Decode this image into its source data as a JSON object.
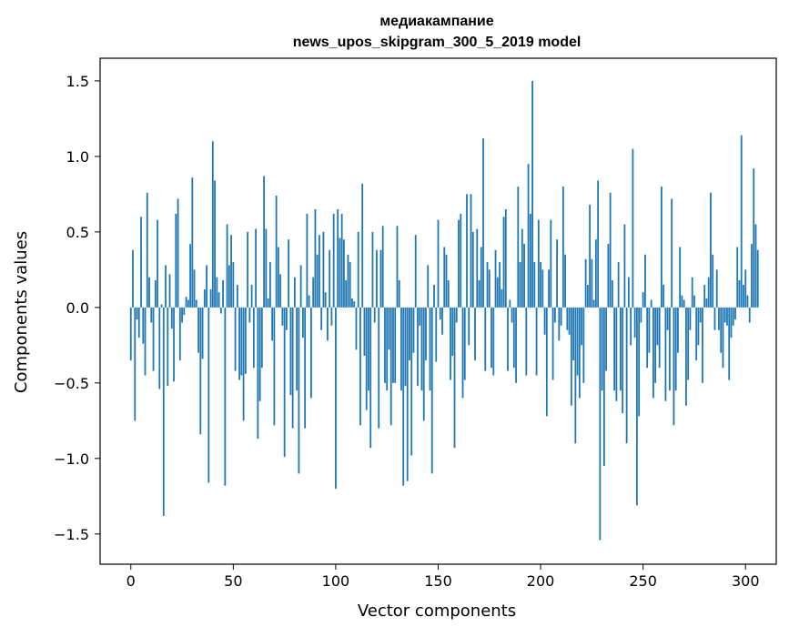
{
  "chart_data": {
    "type": "bar",
    "title_line1": "медиакампание",
    "title_line2": "news_upos_skipgram_300_5_2019 model",
    "xlabel": "Vector components",
    "ylabel": "Components values",
    "xlim": [
      -15,
      315
    ],
    "ylim": [
      -1.7,
      1.65
    ],
    "xticks": [
      0,
      50,
      100,
      150,
      200,
      250,
      300
    ],
    "yticks": [
      -1.5,
      -1.0,
      -0.5,
      0.0,
      0.5,
      1.0,
      1.5
    ],
    "xtick_labels": [
      "0",
      "50",
      "100",
      "150",
      "200",
      "250",
      "300"
    ],
    "ytick_labels": [
      "−1.5",
      "−1.0",
      "−0.5",
      "0.0",
      "0.5",
      "1.0",
      "1.5"
    ],
    "bar_color": "#1f77b4",
    "values": [
      -0.35,
      0.38,
      -0.75,
      -0.08,
      -0.2,
      0.6,
      -0.24,
      -0.45,
      0.76,
      0.2,
      -0.1,
      -0.42,
      0.18,
      0.58,
      -0.54,
      0.02,
      -1.38,
      0.28,
      -0.52,
      0.22,
      -0.14,
      -0.49,
      0.62,
      0.72,
      -0.35,
      -0.1,
      -0.05,
      0.07,
      0.05,
      0.42,
      0.86,
      0.25,
      0.05,
      -0.3,
      -0.84,
      -0.34,
      0.12,
      0.28,
      -1.16,
      0.12,
      1.1,
      0.84,
      0.2,
      0.1,
      -0.04,
      0.18,
      -1.18,
      0.55,
      0.28,
      0.48,
      0.3,
      -0.42,
      0.15,
      -0.48,
      -0.45,
      -0.75,
      -0.44,
      0.5,
      -0.1,
      0.15,
      -0.4,
      0.52,
      -0.87,
      -0.62,
      -0.4,
      0.87,
      0.52,
      0.06,
      0.3,
      -0.22,
      -0.78,
      0.74,
      0.4,
      0.22,
      -0.12,
      -0.99,
      -0.15,
      0.45,
      -0.58,
      -0.8,
      0.2,
      -0.55,
      -1.1,
      0.28,
      -0.2,
      -0.8,
      0.62,
      0.08,
      -0.6,
      0.2,
      0.65,
      0.35,
      0.48,
      -0.15,
      0.5,
      0.1,
      -0.22,
      0.38,
      -0.12,
      0.62,
      -1.2,
      0.65,
      0.46,
      0.62,
      0.45,
      0.18,
      0.35,
      0.3,
      0.06,
      0.04,
      -0.28,
      0.5,
      -0.78,
      0.82,
      -0.32,
      -0.68,
      -0.55,
      -0.93,
      0.5,
      -0.1,
      0.38,
      -0.8,
      0.38,
      0.54,
      -0.5,
      -0.55,
      -0.28,
      -0.78,
      -0.5,
      -0.5,
      0.54,
      0.18,
      -0.55,
      -1.18,
      -0.52,
      -1.15,
      -0.35,
      -0.98,
      -0.3,
      0.48,
      -0.52,
      -0.12,
      -0.55,
      -0.75,
      -0.35,
      0.28,
      -0.55,
      -1.1,
      0.15,
      -0.36,
      0.58,
      -0.08,
      -0.18,
      0.4,
      0.35,
      0.18,
      -0.48,
      -0.32,
      -0.93,
      -0.1,
      0.58,
      0.62,
      -0.6,
      -0.48,
      0.75,
      -0.25,
      0.75,
      0.5,
      -0.35,
      0.52,
      0.18,
      0.4,
      1.12,
      -0.42,
      0.3,
      0.25,
      -0.4,
      -0.45,
      0.38,
      0.2,
      0.3,
      0.12,
      0.6,
      0.65,
      -0.42,
      0.05,
      -0.1,
      -0.4,
      -0.5,
      0.8,
      0.3,
      0.52,
      0.42,
      -0.45,
      0.95,
      0.62,
      1.5,
      0.3,
      -0.45,
      0.58,
      0.3,
      0.25,
      -0.18,
      -0.72,
      0.25,
      0.58,
      -0.48,
      -0.1,
      0.45,
      -0.22,
      -0.12,
      0.8,
      0.35,
      -0.15,
      -0.18,
      -0.65,
      -0.35,
      -0.9,
      -0.45,
      -0.6,
      -0.25,
      -0.5,
      0.32,
      0.15,
      0.68,
      0.32,
      0.05,
      0.45,
      0.84,
      -1.54,
      -0.55,
      -1.05,
      -0.42,
      0.42,
      0.76,
      0.18,
      -0.55,
      -0.62,
      0.3,
      -0.55,
      -0.7,
      0.55,
      -0.9,
      0.2,
      -0.25,
      1.05,
      -0.2,
      -1.31,
      -0.72,
      -0.1,
      0.1,
      0.35,
      -0.4,
      -0.3,
      0.05,
      -0.6,
      -0.5,
      -0.25,
      -0.4,
      0.8,
      0.15,
      -0.62,
      -0.15,
      -0.55,
      0.72,
      -0.78,
      -0.55,
      -0.3,
      0.4,
      0.08,
      0.05,
      -0.65,
      -0.48,
      -0.15,
      0.2,
      0.08,
      -0.35,
      -0.25,
      -0.1,
      -0.5,
      0.15,
      0.06,
      0.2,
      0.76,
      0.35,
      -0.15,
      0.25,
      -0.15,
      -0.3,
      -0.4,
      -0.1,
      -0.12,
      -0.48,
      -0.2,
      -0.12,
      -0.08,
      0.4,
      0.18,
      1.14,
      0.15,
      0.25,
      0.08,
      -0.1,
      0.42,
      0.92,
      0.55,
      0.38
    ]
  }
}
